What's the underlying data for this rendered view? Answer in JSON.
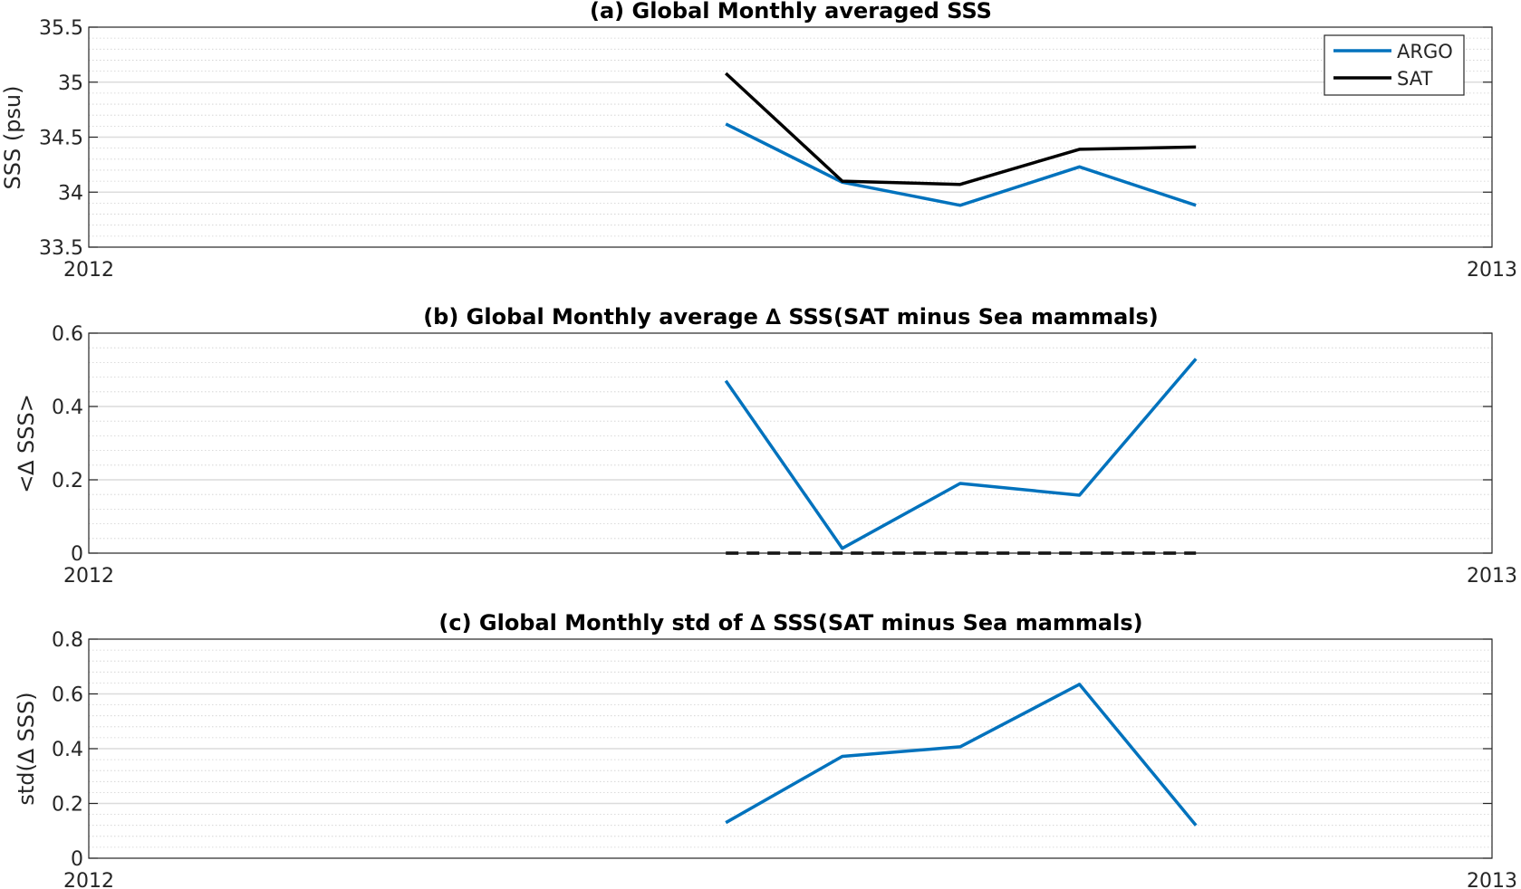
{
  "chart_data": [
    {
      "type": "line",
      "title": "(a) Global Monthly averaged SSS",
      "ylabel": "SSS (psu)",
      "xlim": [
        2012,
        2013
      ],
      "x_tick_labels": [
        "2012",
        "2013"
      ],
      "ylim": [
        33.5,
        35.5
      ],
      "y_ticks": [
        33.5,
        34,
        34.5,
        35,
        35.5
      ],
      "y_tick_labels": [
        "33.5",
        "34",
        "34.5",
        "35",
        "35.5"
      ],
      "grid": true,
      "minor_grid": true,
      "legend": "top-right",
      "x": [
        2012.454,
        2012.537,
        2012.621,
        2012.706,
        2012.789
      ],
      "series": [
        {
          "name": "ARGO",
          "color": "#0072BD",
          "style": "solid",
          "values": [
            34.62,
            34.09,
            33.88,
            34.23,
            33.88
          ]
        },
        {
          "name": "SAT",
          "color": "#000000",
          "style": "solid",
          "values": [
            35.08,
            34.1,
            34.07,
            34.39,
            34.41
          ]
        }
      ]
    },
    {
      "type": "line",
      "title": "(b) Global Monthly average ∆ SSS(SAT minus Sea mammals)",
      "ylabel": "<∆ SSS>",
      "xlim": [
        2012,
        2013
      ],
      "x_tick_labels": [
        "2012",
        "2013"
      ],
      "ylim": [
        0,
        0.6
      ],
      "y_ticks": [
        0,
        0.2,
        0.4,
        0.6
      ],
      "y_tick_labels": [
        "0",
        "0.2",
        "0.4",
        "0.6"
      ],
      "grid": true,
      "minor_grid": true,
      "x": [
        2012.454,
        2012.537,
        2012.621,
        2012.706,
        2012.789
      ],
      "series": [
        {
          "color": "#0072BD",
          "style": "solid",
          "values": [
            0.47,
            0.013,
            0.19,
            0.158,
            0.53
          ]
        },
        {
          "color": "#000000",
          "style": "dashed",
          "values": [
            0,
            0,
            0,
            0,
            0
          ]
        }
      ]
    },
    {
      "type": "line",
      "title": "(c) Global Monthly std of ∆ SSS(SAT minus Sea mammals)",
      "ylabel": "std(∆ SSS)",
      "xlim": [
        2012,
        2013
      ],
      "x_tick_labels": [
        "2012",
        "2013"
      ],
      "ylim": [
        0,
        0.8
      ],
      "y_ticks": [
        0,
        0.2,
        0.4,
        0.6,
        0.8
      ],
      "y_tick_labels": [
        "0",
        "0.2",
        "0.4",
        "0.6",
        "0.8"
      ],
      "grid": true,
      "minor_grid": true,
      "x": [
        2012.454,
        2012.537,
        2012.621,
        2012.706,
        2012.789
      ],
      "series": [
        {
          "color": "#0072BD",
          "style": "solid",
          "values": [
            0.13,
            0.372,
            0.407,
            0.635,
            0.12
          ]
        }
      ]
    }
  ]
}
